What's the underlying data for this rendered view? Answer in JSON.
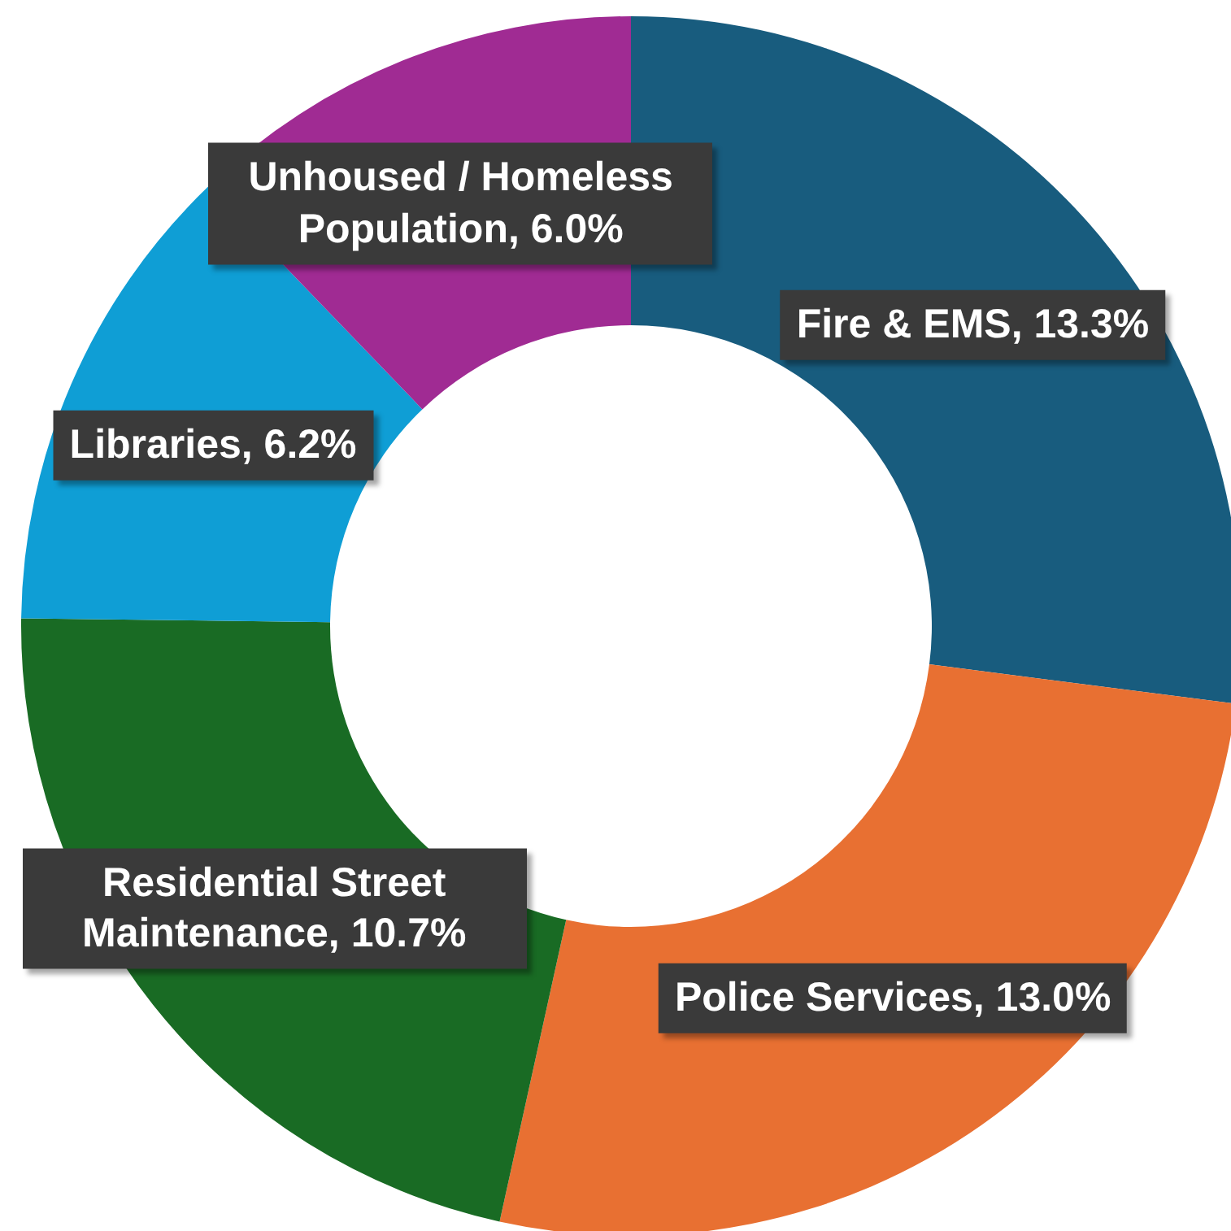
{
  "chart_data": {
    "type": "donut",
    "categories": [
      "Fire & EMS",
      "Police Services",
      "Residential Street Maintenance",
      "Libraries",
      "Unhoused / Homeless Population"
    ],
    "values": [
      13.3,
      13.0,
      10.7,
      6.2,
      6.0
    ],
    "value_labels": [
      "13.3%",
      "13.0%",
      "10.7%",
      "6.2%",
      "6.0%"
    ],
    "colors": [
      "#185c7e",
      "#e87032",
      "#196b24",
      "#0f9ed5",
      "#a02b93"
    ]
  }
}
